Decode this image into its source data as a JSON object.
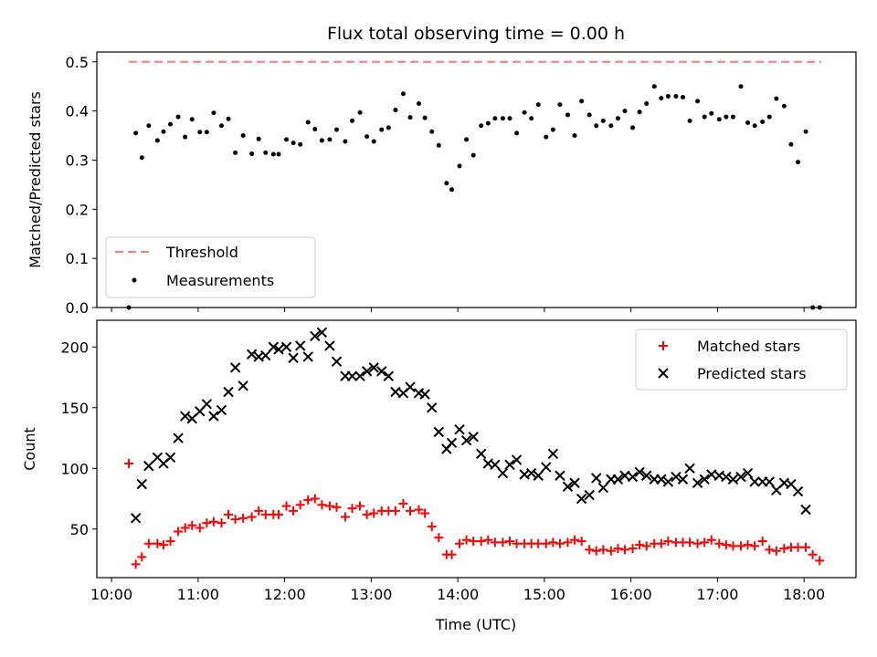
{
  "chart_data": [
    {
      "type": "line+scatter",
      "title": "Flux total observing time = 0.00 h",
      "ylabel": "Matched/Predicted stars",
      "ylim": [
        0.0,
        0.52
      ],
      "yticks": [
        "0.0",
        "0.1",
        "0.2",
        "0.3",
        "0.4",
        "0.5"
      ],
      "yticks_values": [
        0.0,
        0.1,
        0.2,
        0.3,
        0.4,
        0.5
      ],
      "legend_position": "lower-left",
      "threshold": {
        "name": "Threshold",
        "value": 0.5,
        "x_start": "10:12",
        "x_end": "18:12",
        "color": "#f08080",
        "style": "dashed"
      },
      "measurements": {
        "name": "Measurements",
        "color": "#000000",
        "x_hours": [
          10.2,
          10.28,
          10.35,
          10.43,
          10.53,
          10.6,
          10.68,
          10.77,
          10.85,
          10.93,
          11.02,
          11.1,
          11.18,
          11.27,
          11.35,
          11.43,
          11.52,
          11.62,
          11.7,
          11.78,
          11.87,
          11.93,
          12.02,
          12.1,
          12.18,
          12.27,
          12.35,
          12.43,
          12.52,
          12.6,
          12.7,
          12.78,
          12.87,
          12.95,
          13.03,
          13.12,
          13.2,
          13.28,
          13.37,
          13.45,
          13.55,
          13.62,
          13.7,
          13.78,
          13.87,
          13.93,
          14.02,
          14.1,
          14.18,
          14.27,
          14.35,
          14.43,
          14.52,
          14.6,
          14.68,
          14.77,
          14.85,
          14.93,
          15.02,
          15.1,
          15.18,
          15.27,
          15.35,
          15.43,
          15.52,
          15.6,
          15.68,
          15.77,
          15.85,
          15.93,
          16.02,
          16.1,
          16.18,
          16.27,
          16.35,
          16.43,
          16.52,
          16.6,
          16.68,
          16.77,
          16.85,
          16.93,
          17.02,
          17.1,
          17.18,
          17.27,
          17.35,
          17.43,
          17.52,
          17.6,
          17.68,
          17.77,
          17.85,
          17.93,
          18.02,
          18.1,
          18.18
        ],
        "y": [
          0.0,
          0.355,
          0.305,
          0.37,
          0.34,
          0.358,
          0.373,
          0.388,
          0.347,
          0.383,
          0.357,
          0.357,
          0.396,
          0.37,
          0.384,
          0.315,
          0.35,
          0.313,
          0.343,
          0.315,
          0.312,
          0.312,
          0.342,
          0.335,
          0.332,
          0.377,
          0.363,
          0.34,
          0.342,
          0.362,
          0.338,
          0.38,
          0.397,
          0.348,
          0.338,
          0.362,
          0.366,
          0.402,
          0.435,
          0.387,
          0.415,
          0.386,
          0.358,
          0.33,
          0.253,
          0.24,
          0.288,
          0.342,
          0.31,
          0.37,
          0.375,
          0.385,
          0.385,
          0.385,
          0.355,
          0.397,
          0.385,
          0.413,
          0.347,
          0.362,
          0.413,
          0.392,
          0.35,
          0.42,
          0.392,
          0.37,
          0.38,
          0.37,
          0.385,
          0.4,
          0.366,
          0.398,
          0.415,
          0.45,
          0.426,
          0.43,
          0.43,
          0.428,
          0.38,
          0.42,
          0.388,
          0.395,
          0.383,
          0.388,
          0.388,
          0.45,
          0.376,
          0.37,
          0.378,
          0.388,
          0.425,
          0.41,
          0.332,
          0.296,
          0.358,
          0.0,
          0.0
        ]
      }
    },
    {
      "type": "scatter",
      "xlabel": "Time (UTC)",
      "ylabel": "Count",
      "ylim": [
        10,
        222
      ],
      "yticks": [
        "50",
        "100",
        "150",
        "200"
      ],
      "yticks_values": [
        50,
        100,
        150,
        200
      ],
      "xlim_hours": [
        9.83,
        18.6
      ],
      "xticks": [
        "10:00",
        "11:00",
        "12:00",
        "13:00",
        "14:00",
        "15:00",
        "16:00",
        "17:00",
        "18:00"
      ],
      "xticks_values": [
        10,
        11,
        12,
        13,
        14,
        15,
        16,
        17,
        18
      ],
      "legend_position": "upper-right",
      "series": [
        {
          "name": "Matched stars",
          "marker": "plus",
          "color": "#ff0000",
          "x_hours": [
            10.2,
            10.28,
            10.35,
            10.43,
            10.53,
            10.6,
            10.68,
            10.77,
            10.85,
            10.93,
            11.02,
            11.1,
            11.18,
            11.27,
            11.35,
            11.43,
            11.52,
            11.62,
            11.7,
            11.78,
            11.87,
            11.93,
            12.02,
            12.1,
            12.18,
            12.27,
            12.35,
            12.43,
            12.52,
            12.6,
            12.7,
            12.78,
            12.87,
            12.95,
            13.03,
            13.12,
            13.2,
            13.28,
            13.37,
            13.45,
            13.55,
            13.62,
            13.7,
            13.78,
            13.87,
            13.93,
            14.02,
            14.1,
            14.18,
            14.27,
            14.35,
            14.43,
            14.52,
            14.6,
            14.68,
            14.77,
            14.85,
            14.93,
            15.02,
            15.1,
            15.18,
            15.27,
            15.35,
            15.43,
            15.52,
            15.6,
            15.68,
            15.77,
            15.85,
            15.93,
            16.02,
            16.1,
            16.18,
            16.27,
            16.35,
            16.43,
            16.52,
            16.6,
            16.68,
            16.77,
            16.85,
            16.93,
            17.02,
            17.1,
            17.18,
            17.27,
            17.35,
            17.43,
            17.52,
            17.6,
            17.68,
            17.77,
            17.85,
            17.93,
            18.02,
            18.1,
            18.18
          ],
          "y": [
            104,
            21,
            27,
            38,
            38,
            37,
            40,
            48,
            51,
            53,
            51,
            55,
            56,
            55,
            62,
            58,
            59,
            60,
            65,
            62,
            62,
            62,
            69,
            65,
            70,
            74,
            75,
            70,
            69,
            68,
            60,
            67,
            69,
            62,
            63,
            65,
            65,
            65,
            71,
            65,
            66,
            63,
            52,
            43,
            29,
            29,
            38,
            41,
            40,
            40,
            41,
            39,
            39,
            40,
            38,
            38,
            38,
            38,
            38,
            39,
            38,
            39,
            41,
            40,
            33,
            32,
            33,
            32,
            34,
            33,
            34,
            37,
            36,
            38,
            38,
            40,
            39,
            39,
            39,
            38,
            39,
            41,
            38,
            37,
            36,
            36,
            37,
            36,
            40,
            33,
            32,
            34,
            35,
            35,
            35,
            29,
            24
          ]
        },
        {
          "name": "Predicted stars",
          "marker": "x",
          "color": "#000000",
          "x_hours": [
            10.28,
            10.35,
            10.43,
            10.53,
            10.6,
            10.68,
            10.77,
            10.85,
            10.93,
            11.02,
            11.1,
            11.18,
            11.27,
            11.35,
            11.43,
            11.52,
            11.62,
            11.7,
            11.78,
            11.87,
            11.93,
            12.02,
            12.1,
            12.18,
            12.27,
            12.35,
            12.43,
            12.52,
            12.6,
            12.7,
            12.78,
            12.87,
            12.95,
            13.03,
            13.12,
            13.2,
            13.28,
            13.37,
            13.45,
            13.55,
            13.62,
            13.7,
            13.78,
            13.87,
            13.93,
            14.02,
            14.1,
            14.18,
            14.27,
            14.35,
            14.43,
            14.52,
            14.6,
            14.68,
            14.77,
            14.85,
            14.93,
            15.02,
            15.1,
            15.18,
            15.27,
            15.35,
            15.43,
            15.52,
            15.6,
            15.68,
            15.77,
            15.85,
            15.93,
            16.02,
            16.1,
            16.18,
            16.27,
            16.35,
            16.43,
            16.52,
            16.6,
            16.68,
            16.77,
            16.85,
            16.93,
            17.02,
            17.1,
            17.18,
            17.27,
            17.35,
            17.43,
            17.52,
            17.6,
            17.68,
            17.77,
            17.85,
            17.93,
            18.02
          ],
          "y": [
            59,
            87,
            102,
            109,
            104,
            109,
            125,
            143,
            141,
            147,
            153,
            143,
            148,
            163,
            183,
            168,
            194,
            192,
            193,
            200,
            198,
            200,
            191,
            201,
            192,
            209,
            212,
            201,
            188,
            176,
            176,
            176,
            180,
            183,
            180,
            176,
            163,
            162,
            167,
            162,
            161,
            150,
            130,
            116,
            121,
            132,
            123,
            126,
            112,
            104,
            103,
            96,
            103,
            107,
            95,
            96,
            94,
            101,
            112,
            94,
            85,
            88,
            75,
            78,
            92,
            84,
            91,
            91,
            94,
            93,
            97,
            94,
            91,
            91,
            89,
            93,
            91,
            100,
            88,
            91,
            95,
            94,
            93,
            91,
            93,
            96,
            89,
            89,
            89,
            82,
            88,
            87,
            81,
            66
          ]
        }
      ]
    }
  ]
}
